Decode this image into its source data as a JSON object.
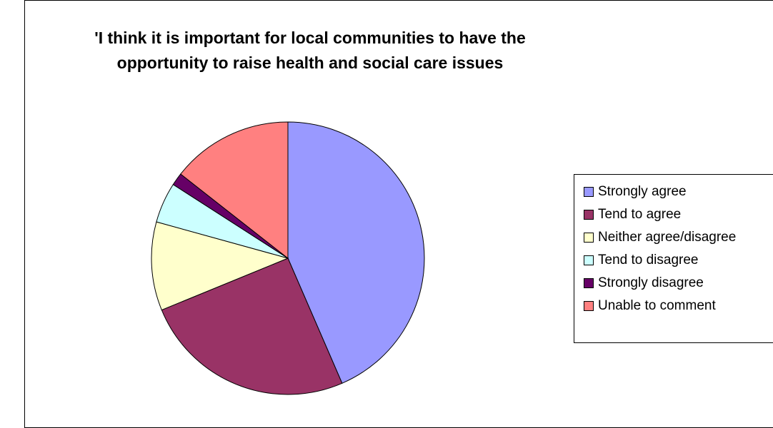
{
  "chart_data": {
    "type": "pie",
    "title": "'I think it is important for local communities to have the opportunity to raise health and social care issues",
    "title_lines": [
      "'I think it is important for local communities to have the",
      "opportunity to raise health and social care issues"
    ],
    "categories": [
      "Strongly agree",
      "Tend to agree",
      "Neither agree/disagree",
      "Tend to disagree",
      "Strongly disagree",
      "Unable to comment"
    ],
    "values": [
      43.5,
      25.3,
      10.5,
      4.8,
      1.5,
      14.4
    ],
    "colors": [
      "#9999FF",
      "#993366",
      "#FFFFCC",
      "#CCFFFF",
      "#660066",
      "#FF8080"
    ],
    "legend_position": "right",
    "start_angle_deg": 0,
    "direction": "clockwise"
  }
}
